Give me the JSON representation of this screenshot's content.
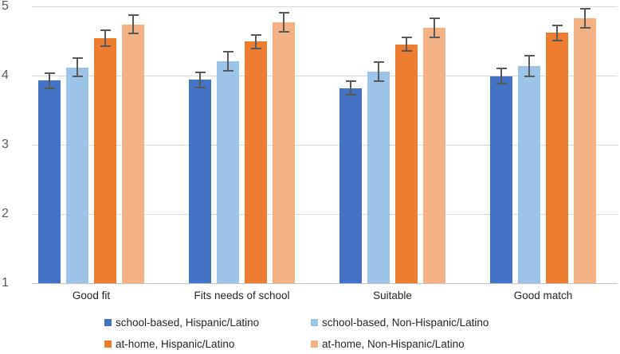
{
  "chart_data": {
    "type": "bar",
    "title": "",
    "xlabel": "",
    "ylabel": "",
    "categories": [
      "Good fit",
      "Fits needs of school",
      "Suitable",
      "Good match"
    ],
    "series": [
      {
        "name": "school-based, Hispanic/Latino",
        "color": "#4472C4",
        "values": [
          3.93,
          3.94,
          3.82,
          3.99
        ],
        "errors": [
          0.12,
          0.12,
          0.11,
          0.12
        ]
      },
      {
        "name": "school-based, Non-Hispanic/Latino",
        "color": "#9DC3E6",
        "values": [
          4.12,
          4.21,
          4.06,
          4.14
        ],
        "errors": [
          0.14,
          0.15,
          0.15,
          0.16
        ]
      },
      {
        "name": "at-home, Hispanic/Latino",
        "color": "#ED7D31",
        "values": [
          4.54,
          4.49,
          4.45,
          4.62
        ],
        "errors": [
          0.13,
          0.11,
          0.11,
          0.12
        ]
      },
      {
        "name": "at-home, Non-Hispanic/Latino",
        "color": "#F4B183",
        "values": [
          4.74,
          4.77,
          4.69,
          4.83
        ],
        "errors": [
          0.14,
          0.15,
          0.15,
          0.15
        ]
      }
    ],
    "ylim": [
      1,
      5
    ],
    "yticks": [
      1,
      2,
      3,
      4,
      5
    ],
    "grid": true,
    "error_bars": true,
    "legend_position": "bottom",
    "layout_colors": {
      "gridline": "#d9d9d9",
      "baseline": "#c3c3c3",
      "error_bar": "#595959",
      "tick_label": "#595959",
      "text": "#262626",
      "background": "#ffffff"
    }
  }
}
